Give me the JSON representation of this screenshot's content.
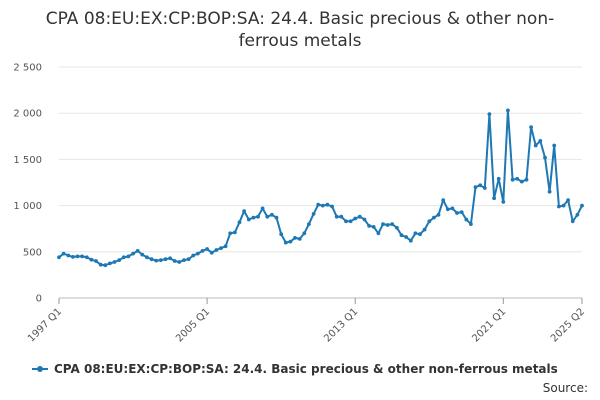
{
  "chart_data": {
    "type": "line",
    "title": "CPA 08:EU:EX:CP:BOP:SA: 24.4. Basic precious & other non-ferrous metals",
    "xlabel": "",
    "ylabel": "",
    "ylim": [
      0,
      2500
    ],
    "yticks": [
      0,
      500,
      1000,
      1500,
      2000,
      2500
    ],
    "ytick_labels": [
      "0",
      "500",
      "1 000",
      "1 500",
      "2 000",
      "2 500"
    ],
    "x_range": [
      "1997 Q1",
      "2025 Q2"
    ],
    "xtick_labels": [
      "1997 Q1",
      "2005 Q1",
      "2013 Q1",
      "2021 Q1",
      "2025 Q2"
    ],
    "grid": true,
    "legend_position": "bottom",
    "color": "#1f78b4",
    "series": [
      {
        "name": "CPA 08:EU:EX:CP:BOP:SA: 24.4. Basic precious & other non-ferrous metals",
        "x": [
          "1997 Q1",
          "1997 Q2",
          "1997 Q3",
          "1997 Q4",
          "1998 Q1",
          "1998 Q2",
          "1998 Q3",
          "1998 Q4",
          "1999 Q1",
          "1999 Q2",
          "1999 Q3",
          "1999 Q4",
          "2000 Q1",
          "2000 Q2",
          "2000 Q3",
          "2000 Q4",
          "2001 Q1",
          "2001 Q2",
          "2001 Q3",
          "2001 Q4",
          "2002 Q1",
          "2002 Q2",
          "2002 Q3",
          "2002 Q4",
          "2003 Q1",
          "2003 Q2",
          "2003 Q3",
          "2003 Q4",
          "2004 Q1",
          "2004 Q2",
          "2004 Q3",
          "2004 Q4",
          "2005 Q1",
          "2005 Q2",
          "2005 Q3",
          "2005 Q4",
          "2006 Q1",
          "2006 Q2",
          "2006 Q3",
          "2006 Q4",
          "2007 Q1",
          "2007 Q2",
          "2007 Q3",
          "2007 Q4",
          "2008 Q1",
          "2008 Q2",
          "2008 Q3",
          "2008 Q4",
          "2009 Q1",
          "2009 Q2",
          "2009 Q3",
          "2009 Q4",
          "2010 Q1",
          "2010 Q2",
          "2010 Q3",
          "2010 Q4",
          "2011 Q1",
          "2011 Q2",
          "2011 Q3",
          "2011 Q4",
          "2012 Q1",
          "2012 Q2",
          "2012 Q3",
          "2012 Q4",
          "2013 Q1",
          "2013 Q2",
          "2013 Q3",
          "2013 Q4",
          "2014 Q1",
          "2014 Q2",
          "2014 Q3",
          "2014 Q4",
          "2015 Q1",
          "2015 Q2",
          "2015 Q3",
          "2015 Q4",
          "2016 Q1",
          "2016 Q2",
          "2016 Q3",
          "2016 Q4",
          "2017 Q1",
          "2017 Q2",
          "2017 Q3",
          "2017 Q4",
          "2018 Q1",
          "2018 Q2",
          "2018 Q3",
          "2018 Q4",
          "2019 Q1",
          "2019 Q2",
          "2019 Q3",
          "2019 Q4",
          "2020 Q1",
          "2020 Q2",
          "2020 Q3",
          "2020 Q4",
          "2021 Q1",
          "2021 Q2",
          "2021 Q3",
          "2021 Q4",
          "2022 Q1",
          "2022 Q2",
          "2022 Q3",
          "2022 Q4",
          "2023 Q1",
          "2023 Q2",
          "2023 Q3",
          "2023 Q4",
          "2024 Q1",
          "2024 Q2",
          "2024 Q3",
          "2024 Q4",
          "2025 Q1",
          "2025 Q2"
        ],
        "values": [
          440,
          480,
          460,
          445,
          450,
          450,
          440,
          415,
          400,
          360,
          355,
          375,
          390,
          410,
          440,
          450,
          480,
          510,
          470,
          440,
          420,
          405,
          410,
          420,
          430,
          400,
          390,
          410,
          420,
          460,
          480,
          510,
          530,
          490,
          520,
          540,
          560,
          700,
          710,
          820,
          940,
          850,
          870,
          880,
          970,
          880,
          900,
          870,
          690,
          600,
          610,
          650,
          640,
          700,
          800,
          910,
          1010,
          1000,
          1010,
          990,
          880,
          880,
          830,
          830,
          860,
          880,
          850,
          780,
          770,
          700,
          800,
          790,
          800,
          760,
          680,
          660,
          620,
          700,
          690,
          740,
          830,
          870,
          900,
          1060,
          960,
          970,
          920,
          930,
          850,
          800,
          1200,
          1220,
          1190,
          1990,
          1080,
          1290,
          1040,
          2030,
          1280,
          1290,
          1260,
          1280,
          1850,
          1650,
          1700,
          1520,
          1150,
          1650,
          990,
          1000,
          1060,
          830,
          900,
          1000
        ]
      }
    ]
  },
  "legend": {
    "label": "CPA 08:EU:EX:CP:BOP:SA: 24.4. Basic precious & other non-ferrous metals"
  },
  "footer": {
    "source": "Source:"
  }
}
